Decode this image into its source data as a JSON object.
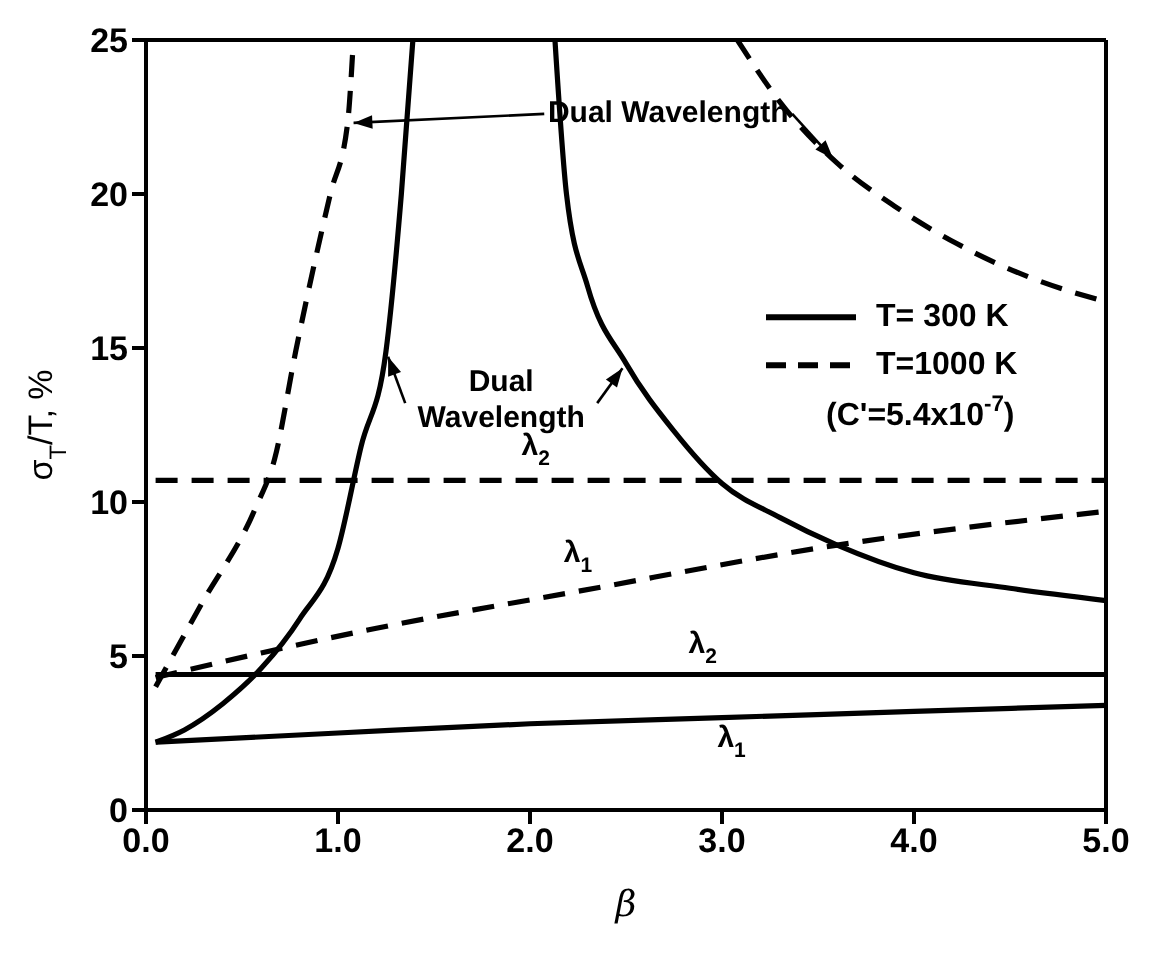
{
  "chart_data": {
    "type": "line",
    "xlabel": "β",
    "ylabel": "σ$_{T}$/T, %",
    "xlim": [
      0,
      5
    ],
    "ylim": [
      0,
      25
    ],
    "xticks": [
      {
        "value": 0,
        "label": "0.0"
      },
      {
        "value": 1,
        "label": "1.0"
      },
      {
        "value": 2,
        "label": "2.0"
      },
      {
        "value": 3,
        "label": "3.0"
      },
      {
        "value": 4,
        "label": "4.0"
      },
      {
        "value": 5,
        "label": "5.0"
      }
    ],
    "yticks": [
      0,
      5,
      10,
      15,
      20,
      25
    ],
    "legend": "right",
    "series": [
      {
        "name": "T= 300 K",
        "color": "#000000",
        "line_style": "solid",
        "x": [
          0.05,
          1,
          2,
          3,
          4,
          5
        ],
        "values": [
          2.2,
          2.5,
          2.8,
          3.0,
          3.2,
          3.4
        ]
      },
      {
        "color": "#000000",
        "line_style": "solid",
        "x": [
          0.05,
          5
        ],
        "values": [
          4.4,
          4.4
        ]
      },
      {
        "color": "#000000",
        "line_style": "solid",
        "x": [
          0.05,
          0.2,
          0.4,
          0.6,
          0.8,
          1.0,
          1.12,
          1.25,
          1.33,
          1.39
        ],
        "values": [
          2.2,
          2.6,
          3.45,
          4.6,
          6.2,
          8.5,
          11.8,
          14.9,
          20,
          25
        ]
      },
      {
        "color": "#000000",
        "line_style": "solid",
        "x": [
          2.13,
          2.19,
          2.3,
          2.5,
          2.75,
          3.0,
          3.3,
          3.6,
          4.0,
          4.5,
          5.0
        ],
        "values": [
          25,
          20,
          17,
          14.5,
          12.3,
          10.6,
          9.5,
          8.6,
          7.7,
          7.2,
          6.8
        ]
      },
      {
        "name": "T=1000 K",
        "color": "#000000",
        "line_style": "dashed",
        "x": [
          0.05,
          0.6,
          1.2,
          2.25,
          3.6,
          5.0
        ],
        "values": [
          4.3,
          5.1,
          5.9,
          7.1,
          8.6,
          9.7
        ]
      },
      {
        "color": "#000000",
        "line_style": "dashed",
        "x": [
          0.05,
          5
        ],
        "values": [
          10.7,
          10.7
        ]
      },
      {
        "color": "#000000",
        "line_style": "dashed",
        "x": [
          0.05,
          0.29,
          0.57,
          0.67,
          0.78,
          0.96,
          1.05,
          1.08
        ],
        "values": [
          4.0,
          6.7,
          9.8,
          11.4,
          14.9,
          20,
          22.3,
          25
        ]
      },
      {
        "color": "#000000",
        "line_style": "dashed",
        "x": [
          3.08,
          3.3,
          3.6,
          3.9,
          4.22,
          4.6,
          5.0
        ],
        "values": [
          25,
          23,
          21.0,
          19.6,
          18.4,
          17.3,
          16.5
        ]
      }
    ],
    "annotations": [
      {
        "text": "Dual Wavelength",
        "x": 1.05,
        "y": 22.3
      },
      "Dual Wavelength",
      "λ$_{2}$",
      "λ$_{1}$",
      "λ$_{2}$",
      "λ$_{1}$",
      "(C'=5.4x10$^{-7}$)"
    ]
  }
}
